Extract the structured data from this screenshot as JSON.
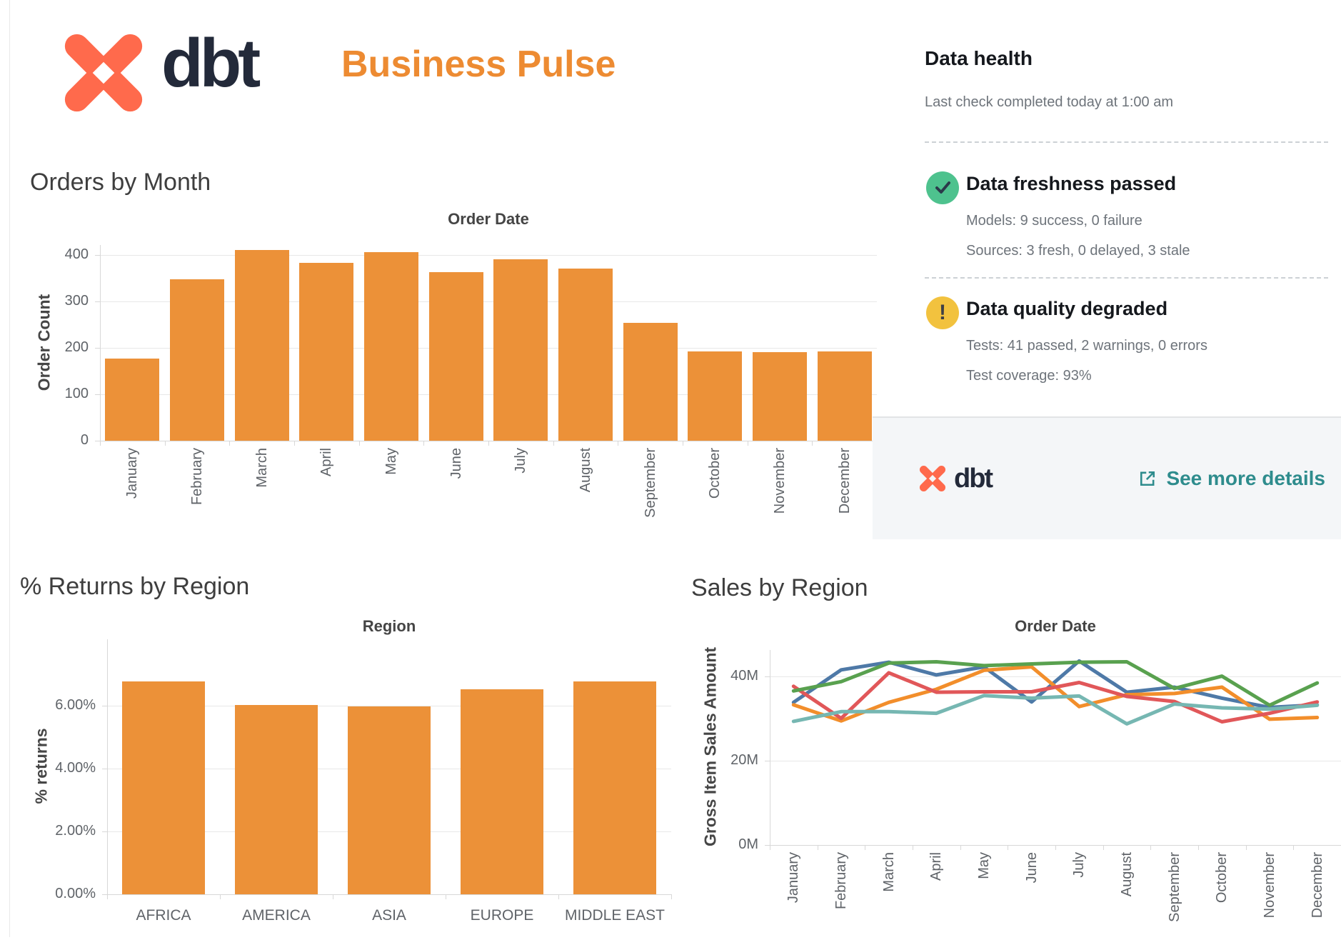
{
  "header": {
    "brand": "dbt",
    "title": "Business Pulse"
  },
  "colors": {
    "accent_orange": "#ec9138",
    "title_orange": "#ed8b32",
    "brand_coral": "#ff6a4c",
    "brand_navy": "#232a3a",
    "link_teal": "#2e8c8d",
    "status_green": "#4ec28e",
    "status_yellow": "#f2c23e"
  },
  "sections": {
    "orders_title": "Orders by Month",
    "returns_title": "% Returns by Region",
    "sales_title": "Sales by Region"
  },
  "data_health": {
    "title": "Data health",
    "subtitle": "Last check completed today at 1:00 am",
    "items": [
      {
        "status": "passed",
        "icon": "check-icon",
        "title": "Data freshness passed",
        "lines": [
          "Models: 9 success, 0 failure",
          "Sources: 3 fresh, 0 delayed, 3 stale"
        ]
      },
      {
        "status": "warning",
        "icon": "warning-icon",
        "title": "Data quality degraded",
        "lines": [
          "Tests: 41 passed, 2 warnings, 0 errors",
          "Test coverage: 93%"
        ]
      }
    ],
    "footer": {
      "brand": "dbt",
      "link": "See more details"
    }
  },
  "chart_data": [
    {
      "id": "orders-by-month",
      "type": "bar",
      "title": "Order Date",
      "xlabel": "Order Date",
      "ylabel": "Order Count",
      "categories": [
        "January",
        "February",
        "March",
        "April",
        "May",
        "June",
        "July",
        "August",
        "September",
        "October",
        "November",
        "December"
      ],
      "values": [
        176,
        347,
        410,
        383,
        406,
        362,
        391,
        370,
        253,
        192,
        191,
        192
      ],
      "ylim": [
        0,
        421
      ],
      "yticks": [
        0,
        100,
        200,
        300,
        400
      ],
      "ytick_labels": [
        "0",
        "100",
        "200",
        "300",
        "400"
      ],
      "bar_color": "#ec9138",
      "bar_frac": 0.84,
      "rotate_x_labels": true,
      "grid": true,
      "legend": "none"
    },
    {
      "id": "pct-returns-by-region",
      "type": "bar",
      "title": "Region",
      "xlabel": "Region",
      "ylabel": "% returns",
      "categories": [
        "AFRICA",
        "AMERICA",
        "ASIA",
        "EUROPE",
        "MIDDLE EAST"
      ],
      "values": [
        6.76,
        6.02,
        5.97,
        6.51,
        6.76
      ],
      "ylim": [
        0,
        8.1
      ],
      "yticks": [
        0,
        2,
        4,
        6
      ],
      "ytick_labels": [
        "0.00%",
        "2.00%",
        "4.00%",
        "6.00%"
      ],
      "bar_color": "#ec9138",
      "bar_frac": 0.74,
      "rotate_x_labels": false,
      "grid": true,
      "legend": "none"
    },
    {
      "id": "sales-by-region",
      "type": "line",
      "title": "Order Date",
      "xlabel": "Order Date",
      "ylabel": "Gross Item Sales Amount",
      "categories": [
        "January",
        "February",
        "March",
        "April",
        "May",
        "June",
        "July",
        "August",
        "September",
        "October",
        "November",
        "December"
      ],
      "series": [
        {
          "name": "series-blue",
          "color": "#4e79a7",
          "values": [
            33.8,
            41.5,
            43.3,
            40.3,
            42.2,
            33.9,
            43.6,
            36.2,
            37.4,
            34.8,
            32.6,
            33.2
          ]
        },
        {
          "name": "series-orange",
          "color": "#f28e2b",
          "values": [
            33.2,
            29.4,
            33.8,
            36.9,
            41.4,
            42.2,
            32.8,
            35.6,
            35.9,
            37.4,
            29.8,
            30.2
          ]
        },
        {
          "name": "series-red",
          "color": "#e15759",
          "values": [
            37.6,
            30.0,
            40.8,
            36.2,
            36.3,
            36.3,
            38.5,
            35.2,
            34.0,
            29.2,
            31.2,
            33.9
          ]
        },
        {
          "name": "series-teal",
          "color": "#76b7b2",
          "values": [
            29.3,
            31.6,
            31.6,
            31.2,
            35.4,
            34.8,
            35.3,
            28.7,
            33.4,
            32.5,
            32.2,
            33.1
          ]
        },
        {
          "name": "series-green",
          "color": "#59a14f",
          "values": [
            36.5,
            38.7,
            43.1,
            43.4,
            42.5,
            42.9,
            43.3,
            43.4,
            37.1,
            40.0,
            33.1,
            38.4
          ]
        }
      ],
      "ylim": [
        0,
        46.2
      ],
      "yticks": [
        0,
        20,
        40
      ],
      "ytick_labels": [
        "0M",
        "20M",
        "40M"
      ],
      "rotate_x_labels": true,
      "grid": true,
      "legend": "none"
    }
  ]
}
